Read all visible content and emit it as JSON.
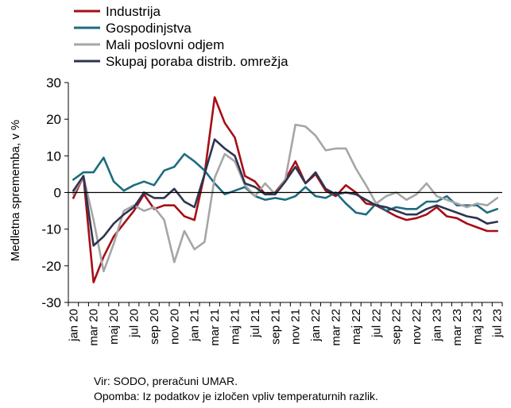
{
  "chart_data": {
    "type": "line",
    "ylabel": "Medletna sprememba, v %",
    "xlabel": "",
    "ylim": [
      -30,
      30
    ],
    "yticks": [
      -30,
      -20,
      -10,
      0,
      10,
      20,
      30
    ],
    "grid": false,
    "legend_position": "top-left",
    "x": [
      "jan 20",
      "feb 20",
      "mar 20",
      "apr 20",
      "maj 20",
      "jun 20",
      "jul 20",
      "avg 20",
      "sep 20",
      "okt 20",
      "nov 20",
      "dec 20",
      "jan 21",
      "feb 21",
      "mar 21",
      "apr 21",
      "maj 21",
      "jun 21",
      "jul 21",
      "avg 21",
      "sep 21",
      "okt 21",
      "nov 21",
      "dec 21",
      "jan 22",
      "feb 22",
      "mar 22",
      "apr 22",
      "maj 22",
      "jun 22",
      "jul 22",
      "avg 22",
      "sep 22",
      "okt 22",
      "nov 22",
      "dec 22",
      "jan 23",
      "feb 23",
      "mar 23",
      "apr 23",
      "maj 23",
      "jun 23",
      "jul 23"
    ],
    "x_tick_labels": [
      "jan 20",
      "mar 20",
      "maj 20",
      "jul 20",
      "sep 20",
      "nov 20",
      "jan 21",
      "mar 21",
      "maj 21",
      "jul 21",
      "sep 21",
      "nov 21",
      "jan 22",
      "mar 22",
      "maj 22",
      "jul 22",
      "sep 22",
      "nov 22",
      "jan 23",
      "mar 23",
      "maj 23",
      "jul 23"
    ],
    "series": [
      {
        "name": "Industrija",
        "color": "#a50f15",
        "values": [
          -1.5,
          4.5,
          -24.5,
          -17.5,
          -12,
          -8.5,
          -5,
          -0.5,
          -4.5,
          -3.5,
          -3.5,
          -6.5,
          -7.5,
          5,
          26,
          19,
          15,
          4.5,
          3,
          -0.5,
          0,
          3.5,
          8.5,
          2.5,
          5,
          0.5,
          -1,
          2,
          0,
          -3,
          -3.5,
          -5,
          -6.5,
          -7.5,
          -7,
          -6,
          -4,
          -6.5,
          -7,
          -8.5,
          -9.5,
          -10.5,
          -10.5
        ]
      },
      {
        "name": "Gospodinjstva",
        "color": "#1d6b80",
        "values": [
          3.5,
          5.5,
          5.5,
          9.5,
          3,
          0.5,
          2,
          3,
          2,
          6,
          7,
          10.5,
          8.5,
          6,
          2.5,
          -0.5,
          0.5,
          1.5,
          -1,
          -2,
          -1.5,
          -2,
          -1,
          1.5,
          -1,
          -1.5,
          0,
          -3,
          -5.5,
          -6,
          -3,
          -5,
          -4,
          -4.5,
          -4.5,
          -2.5,
          -2.5,
          -1,
          -3.5,
          -3.5,
          -3.5,
          -5.5,
          -4.5
        ]
      },
      {
        "name": "Mali poslovni odjem",
        "color": "#a6a6a6",
        "values": [
          -0.5,
          4.5,
          -7.5,
          -21.5,
          -14,
          -5,
          -3.5,
          -5,
          -4,
          -7.5,
          -19,
          -10.5,
          -15.5,
          -13.5,
          4,
          10.5,
          8.5,
          2,
          -1,
          2.5,
          -0.5,
          3.5,
          18.5,
          18,
          15.5,
          11.5,
          12,
          12,
          6.5,
          2,
          -3,
          -1,
          0,
          -2,
          -0.5,
          2.5,
          -1,
          -2,
          -3,
          -4,
          -3,
          -3.5,
          -1.5
        ]
      },
      {
        "name": "Skupaj poraba distrib. omrežja",
        "color": "#2e3450",
        "values": [
          0.5,
          4.5,
          -14.5,
          -12,
          -8.5,
          -6,
          -4,
          0,
          -1.5,
          -1.5,
          1,
          -2.5,
          -4,
          5,
          14.5,
          12,
          10,
          2.5,
          1.5,
          -0.5,
          -0.5,
          3,
          7,
          2.5,
          5.5,
          1,
          -0.5,
          0,
          -0.5,
          -2,
          -3.5,
          -4,
          -5,
          -6,
          -6,
          -4.5,
          -3.5,
          -4.5,
          -5.5,
          -6.5,
          -7,
          -8.5,
          -8
        ]
      }
    ]
  },
  "source_note": "Vir: SODO, preračuni UMAR.",
  "remark_note": "Opomba: Iz podatkov je izločen vpliv temperaturnih razlik."
}
